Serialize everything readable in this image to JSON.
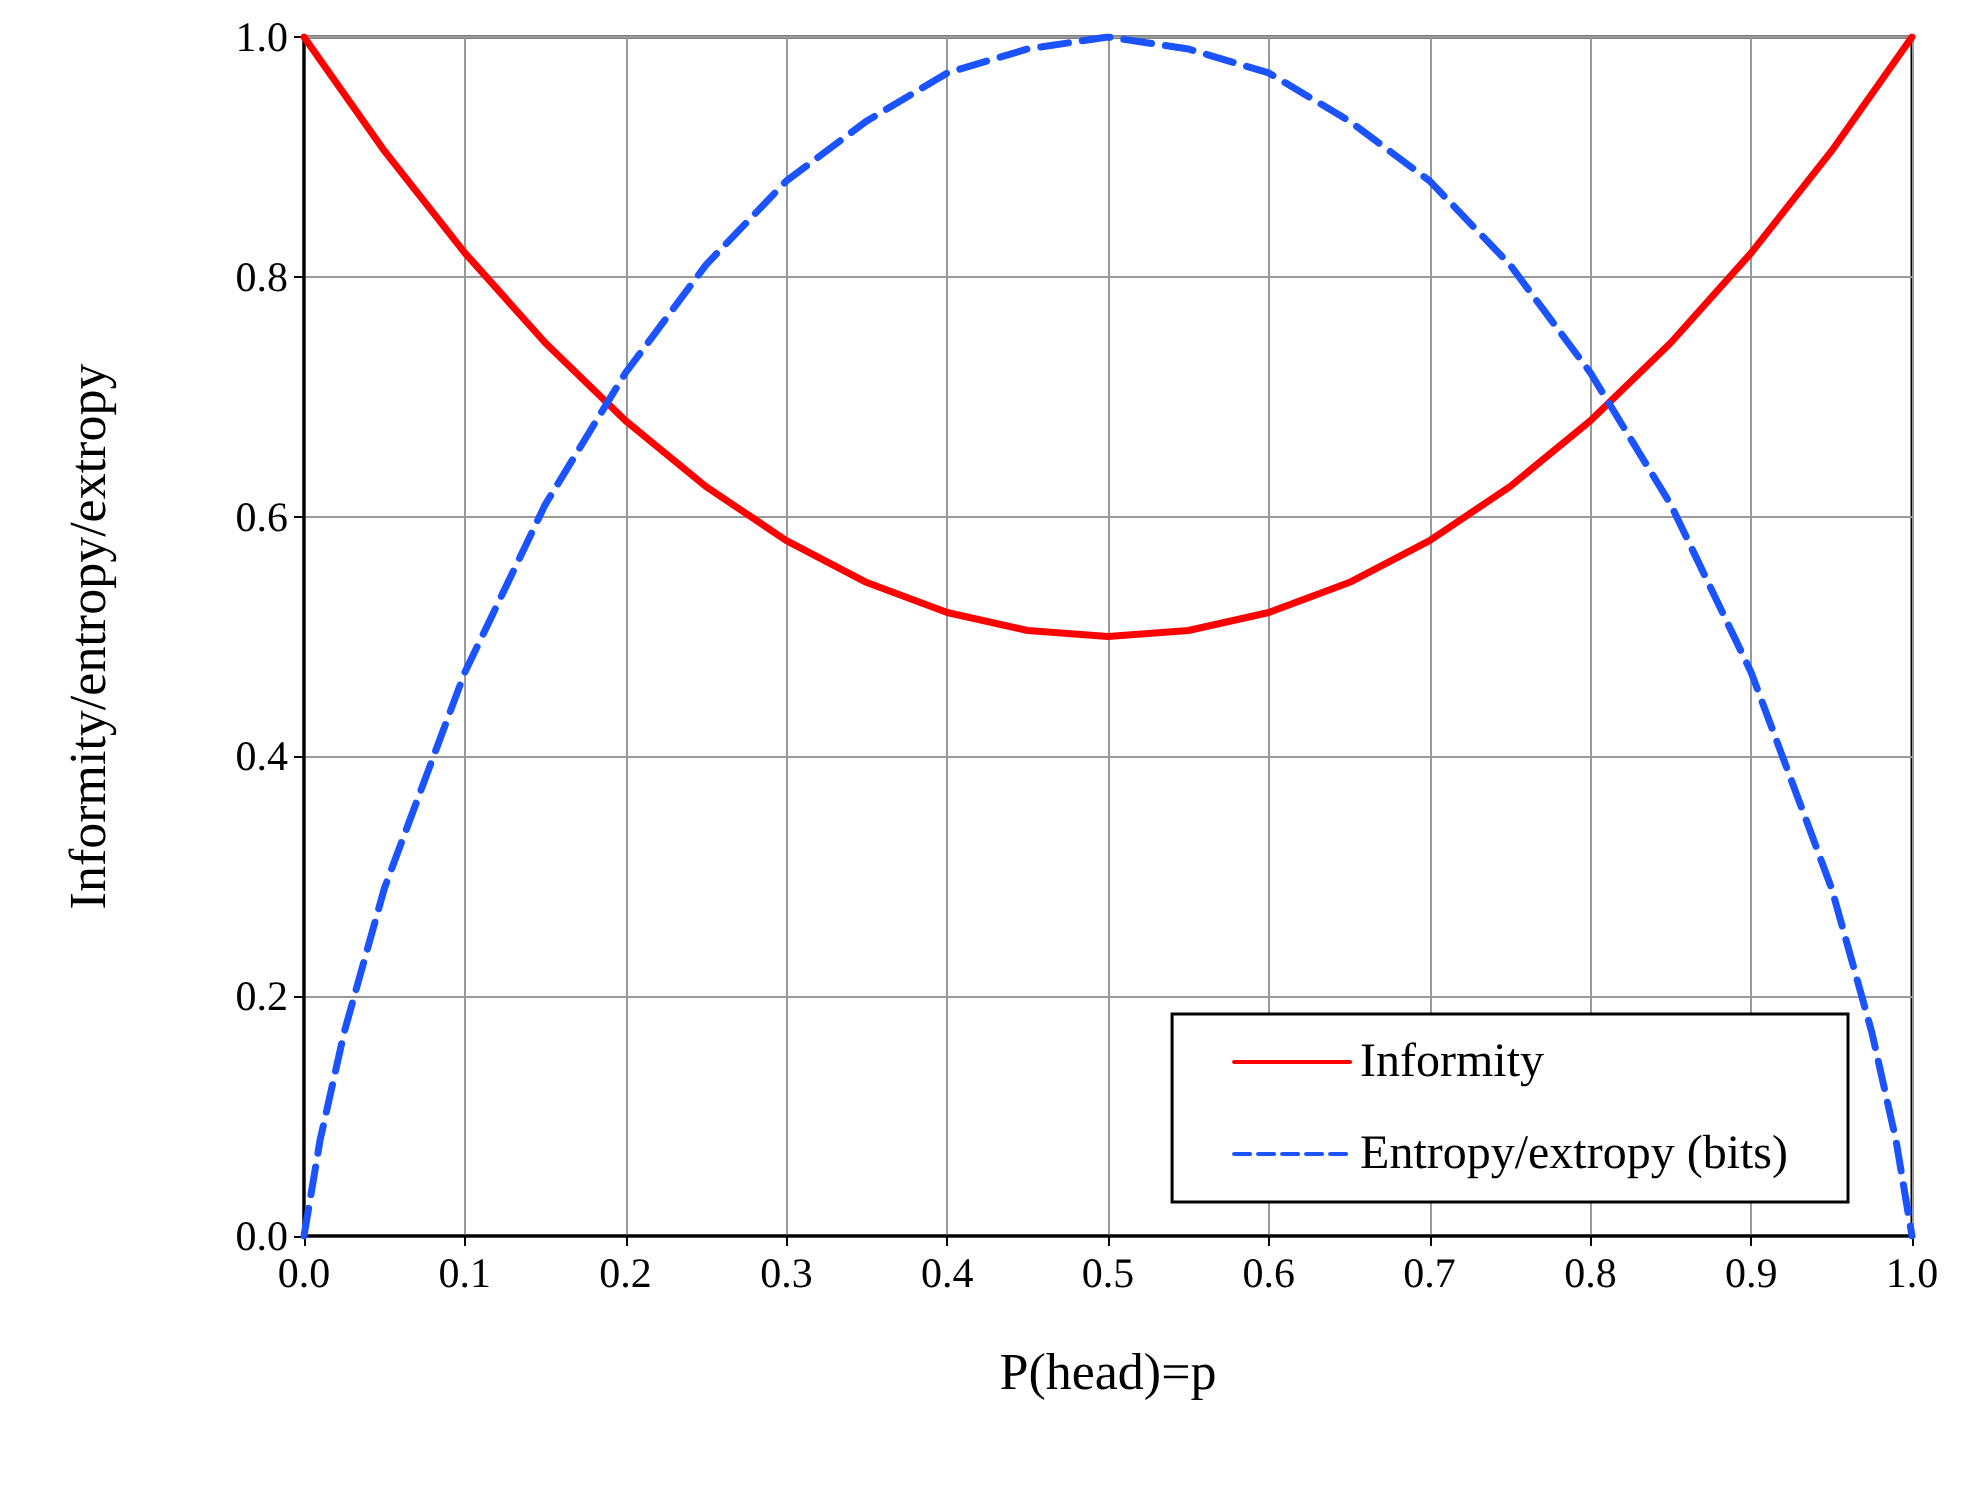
{
  "chart_data": {
    "type": "line",
    "xlabel": "P(head)=p",
    "ylabel": "Informity/entropy/extropy",
    "xlim": [
      0,
      1
    ],
    "xticks": [
      {
        "value": 0,
        "label": "0.0"
      },
      {
        "value": 0.1,
        "label": "0.1"
      },
      {
        "value": 0.2,
        "label": "0.2"
      },
      {
        "value": 0.3,
        "label": "0.3"
      },
      {
        "value": 0.4,
        "label": "0.4"
      },
      {
        "value": 0.5,
        "label": "0.5"
      },
      {
        "value": 0.6,
        "label": "0.6"
      },
      {
        "value": 0.7,
        "label": "0.7"
      },
      {
        "value": 0.8,
        "label": "0.8"
      },
      {
        "value": 0.9,
        "label": "0.9"
      },
      {
        "value": 1,
        "label": "1.0"
      }
    ],
    "ylim": [
      0,
      1
    ],
    "yticks": [
      {
        "value": 0,
        "label": "0.0"
      },
      {
        "value": 0.2,
        "label": "0.2"
      },
      {
        "value": 0.4,
        "label": "0.4"
      },
      {
        "value": 0.6,
        "label": "0.6"
      },
      {
        "value": 0.8,
        "label": "0.8"
      },
      {
        "value": 1,
        "label": "1.0"
      }
    ],
    "grid": true,
    "legend": "bottom right",
    "marker": "none",
    "series": [
      {
        "name": "Informity",
        "color": "#ff0000",
        "line_style": "solid",
        "x": [
          0,
          0.05,
          0.1,
          0.15,
          0.2,
          0.25,
          0.3,
          0.35,
          0.4,
          0.45,
          0.5,
          0.55,
          0.6,
          0.65,
          0.7,
          0.75,
          0.8,
          0.85,
          0.9,
          0.95,
          1
        ],
        "values": [
          1,
          0.905,
          0.82,
          0.745,
          0.68,
          0.625,
          0.58,
          0.545,
          0.52,
          0.505,
          0.5,
          0.505,
          0.52,
          0.545,
          0.58,
          0.625,
          0.68,
          0.745,
          0.82,
          0.905,
          1
        ]
      },
      {
        "name": "Entropy/extropy (bits)",
        "color": "#1a53ff",
        "line_style": "dashed",
        "x": [
          0,
          0.01,
          0.025,
          0.05,
          0.1,
          0.15,
          0.2,
          0.25,
          0.3,
          0.35,
          0.4,
          0.45,
          0.5,
          0.55,
          0.6,
          0.65,
          0.7,
          0.75,
          0.8,
          0.85,
          0.9,
          0.95,
          0.975,
          0.99,
          1
        ],
        "values": [
          0,
          0.08,
          0.17,
          0.29,
          0.47,
          0.61,
          0.72,
          0.81,
          0.88,
          0.93,
          0.97,
          0.99,
          1,
          0.99,
          0.97,
          0.93,
          0.88,
          0.81,
          0.72,
          0.61,
          0.47,
          0.29,
          0.17,
          0.08,
          0
        ]
      }
    ]
  }
}
